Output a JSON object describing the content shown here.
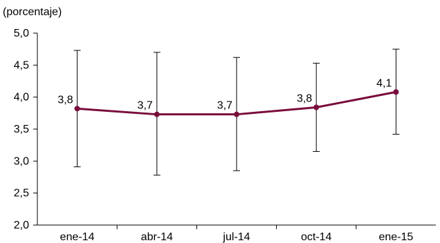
{
  "chart_data": {
    "type": "line",
    "unit_label": "(porcentaje)",
    "categories": [
      "ene-14",
      "abr-14",
      "jul-14",
      "oct-14",
      "ene-15"
    ],
    "series": [
      {
        "values": [
          3.82,
          3.73,
          3.73,
          3.84,
          4.08
        ],
        "labels": [
          "3,8",
          "3,7",
          "3,7",
          "3,8",
          "4,1"
        ],
        "color": "#7a0c3c"
      }
    ],
    "error_bars": {
      "low": [
        2.91,
        2.78,
        2.85,
        3.15,
        3.42
      ],
      "high": [
        4.73,
        4.7,
        4.62,
        4.53,
        4.75
      ]
    },
    "ylim": [
      2.0,
      5.0
    ],
    "yticks": [
      "2,0",
      "2,5",
      "3,0",
      "3,5",
      "4,0",
      "4,5",
      "5,0"
    ],
    "grid": false
  }
}
